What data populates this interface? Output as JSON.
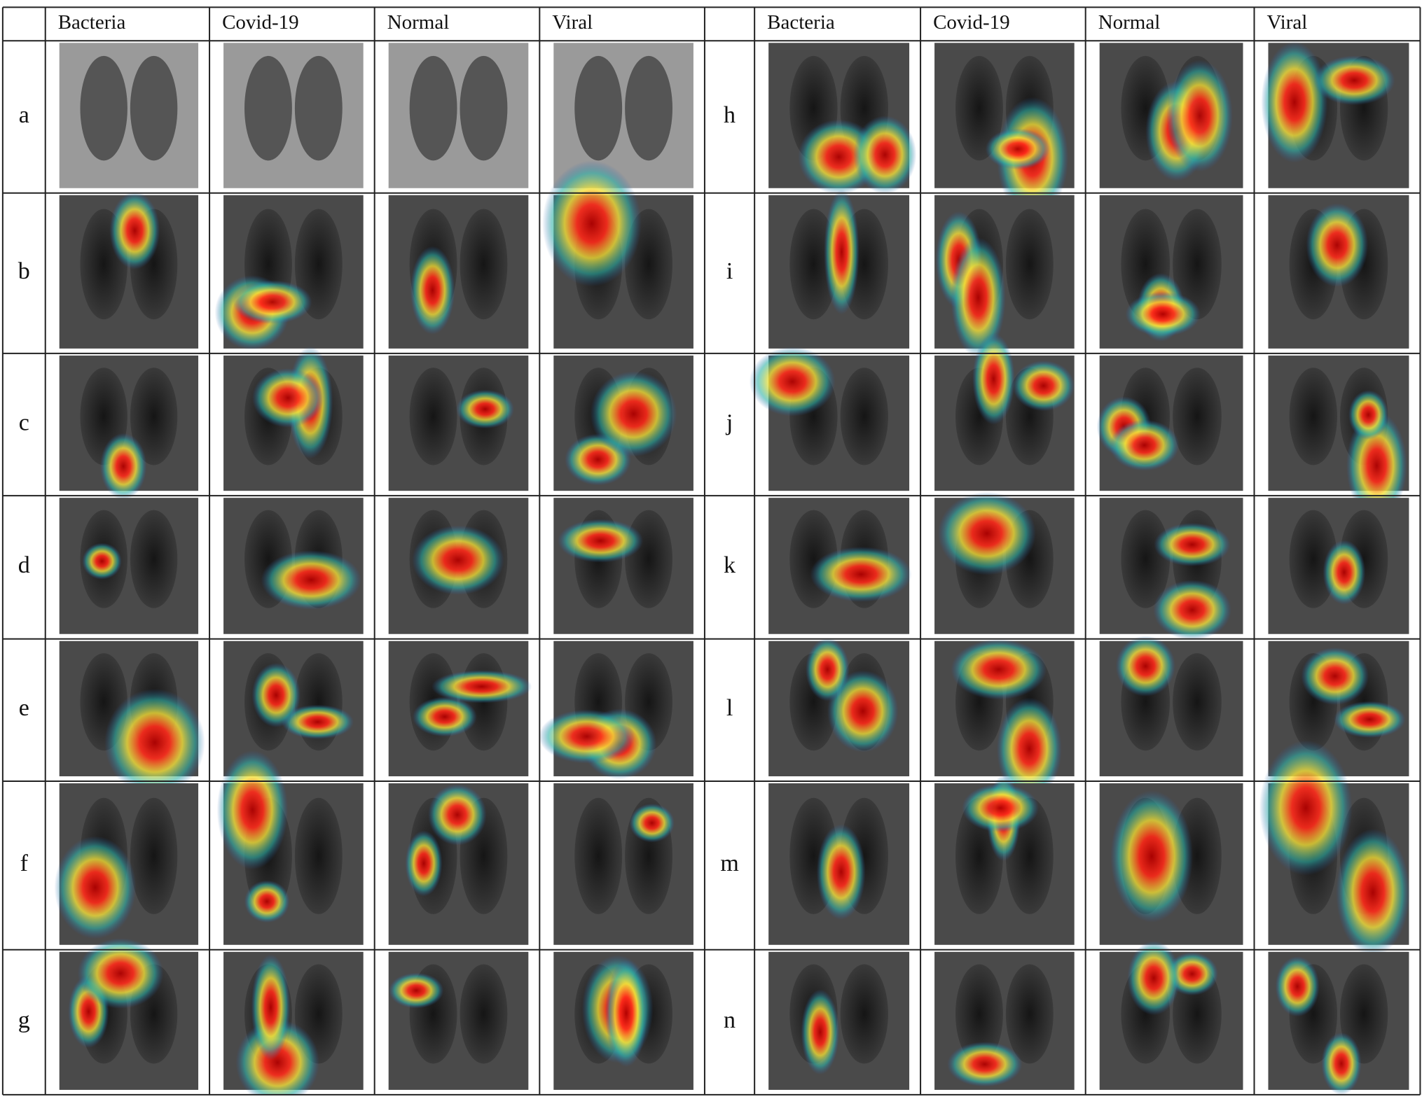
{
  "table": {
    "columns": [
      "Bacteria",
      "Covid-19",
      "Normal",
      "Viral"
    ],
    "left_rows": [
      "a",
      "b",
      "c",
      "d",
      "e",
      "f",
      "g"
    ],
    "right_rows": [
      "h",
      "i",
      "j",
      "k",
      "l",
      "m",
      "n"
    ]
  }
}
